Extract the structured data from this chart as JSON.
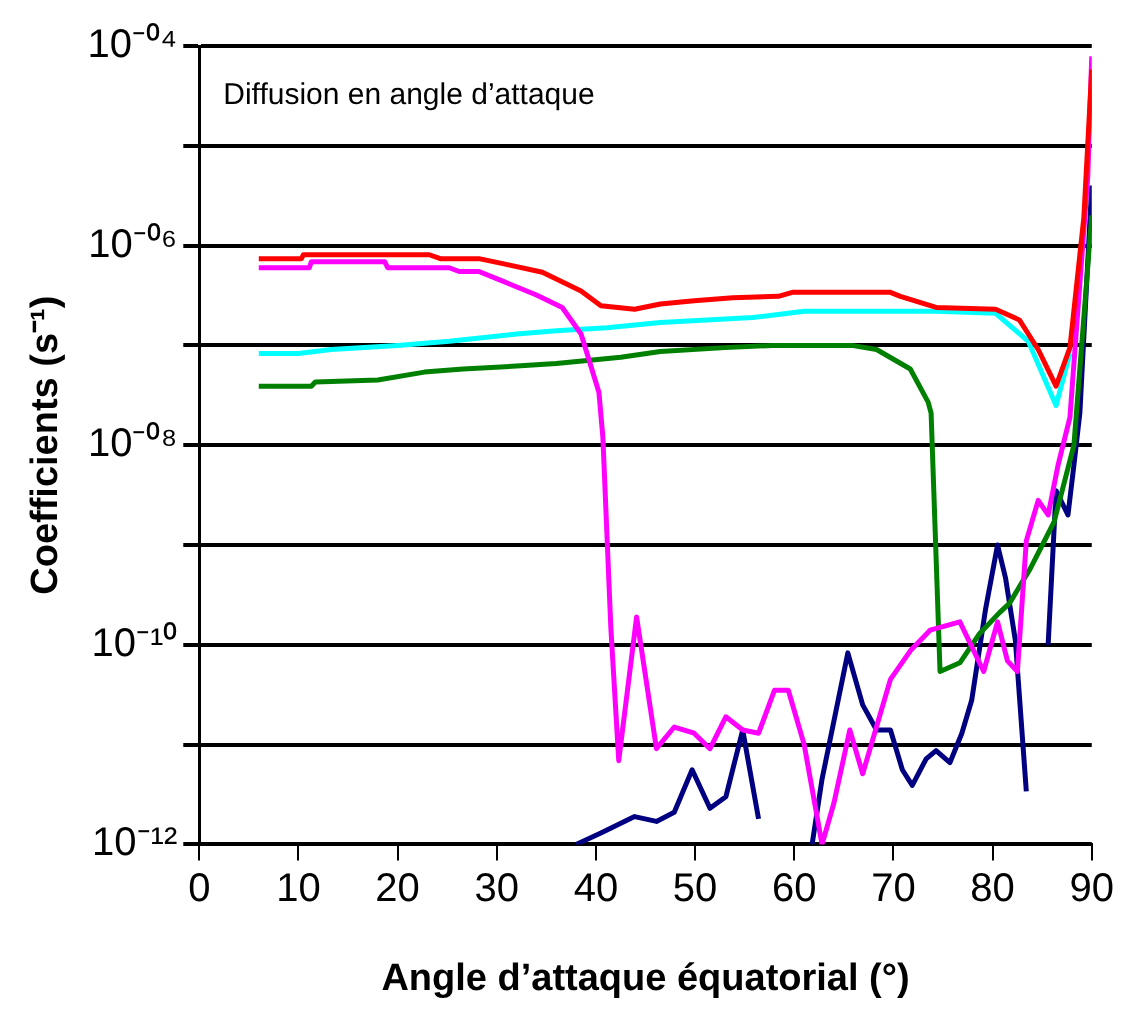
{
  "chart_data": {
    "type": "line",
    "xlabel": "Angle d’attaque équatorial (°)",
    "ylabel": "Coefficients (s⁻¹)",
    "annotations": [
      "Diffusion en angle d’attaque"
    ],
    "xlim": [
      0,
      90
    ],
    "xticks": [
      0,
      10,
      20,
      30,
      40,
      50,
      60,
      70,
      80,
      90
    ],
    "ylim": [
      1e-12,
      0.0001
    ],
    "yticks": [
      {
        "value": 1e-12,
        "label": "10⁻¹²"
      },
      {
        "value": 1e-11,
        "label": null
      },
      {
        "value": 1e-10,
        "label": "10⁻¹⁰"
      },
      {
        "value": 1e-09,
        "label": null
      },
      {
        "value": 1e-08,
        "label": "10⁻⁰⁸"
      },
      {
        "value": 1e-07,
        "label": null
      },
      {
        "value": 1e-06,
        "label": "10⁻⁰⁶"
      },
      {
        "value": 1e-05,
        "label": null
      },
      {
        "value": 0.0001,
        "label": "10⁻⁰⁴"
      }
    ],
    "log": "y",
    "grid": "y",
    "legend": false,
    "marker": "none",
    "line_style": "solid",
    "series": [
      {
        "color": "#ff0000",
        "x": [
          6,
          10.3,
          10.5,
          23.2,
          24.3,
          28.2,
          30.6,
          34.6,
          38.5,
          40.5,
          43.9,
          46.5,
          49.9,
          53.8,
          58.4,
          59.8,
          69.7,
          70.7,
          74.3,
          80.3,
          82.7,
          84.6,
          86.4,
          87.8,
          89.2,
          90
        ],
        "values": [
          7.4e-07,
          7.4e-07,
          8.1e-07,
          8.1e-07,
          7.4e-07,
          7.4e-07,
          6.6e-07,
          5.4e-07,
          3.5e-07,
          2.5e-07,
          2.3e-07,
          2.6e-07,
          2.8e-07,
          3e-07,
          3.1e-07,
          3.4e-07,
          3.4e-07,
          3.1e-07,
          2.4e-07,
          2.3e-07,
          1.8e-07,
          9.1e-08,
          3.9e-08,
          9.5e-08,
          1.9e-06,
          5.8e-05
        ]
      },
      {
        "color": "#ff00ff",
        "x": [
          6,
          11.1,
          11.3,
          18.7,
          19,
          25.2,
          26.2,
          28.2,
          30.6,
          34,
          36.6,
          38.5,
          40.3,
          40.7,
          41.5,
          42.3,
          44.1,
          46.1,
          47.9,
          49.9,
          51.5,
          53.1,
          54.8,
          56.4,
          58,
          59.4,
          61,
          62.8,
          64,
          65.6,
          66.9,
          69.7,
          71.7,
          73.7,
          76.7,
          79.1,
          80.5,
          81.5,
          82.5,
          83.4,
          84.6,
          85.6,
          86.6,
          87.8,
          89.6,
          90
        ],
        "values": [
          6e-07,
          6e-07,
          6.9e-07,
          6.9e-07,
          6e-07,
          6e-07,
          5.5e-07,
          5.5e-07,
          4.4e-07,
          3.2e-07,
          2.4e-07,
          1.3e-07,
          3.4e-08,
          1.2e-08,
          1.5e-10,
          6.9e-12,
          1.9e-10,
          9.1e-12,
          1.5e-11,
          1.3e-11,
          9.1e-12,
          1.9e-11,
          1.4e-11,
          1.3e-11,
          3.5e-11,
          3.5e-11,
          1e-11,
          1e-12,
          2.6e-12,
          1.4e-11,
          5.1e-12,
          4.5e-11,
          8.7e-11,
          1.4e-10,
          1.7e-10,
          5.4e-11,
          1.7e-10,
          6.9e-11,
          5.4e-11,
          1.1e-09,
          2.8e-09,
          2e-09,
          6.3e-09,
          1.9e-08,
          4.9e-06,
          7.9e-05
        ]
      },
      {
        "color": "#00ffff",
        "x": [
          6,
          10,
          13.3,
          20,
          25.2,
          32,
          36,
          41.1,
          46.5,
          55.8,
          61,
          74.3,
          80.3,
          83.6,
          86.4,
          87.8
        ],
        "values": [
          8.3e-08,
          8.3e-08,
          9.1e-08,
          1e-07,
          1.1e-07,
          1.3e-07,
          1.4e-07,
          1.5e-07,
          1.7e-07,
          1.9e-07,
          2.2e-07,
          2.2e-07,
          2.1e-07,
          1.1e-07,
          2.5e-08,
          8.3e-08
        ]
      },
      {
        "color": "#008000",
        "x": [
          6,
          11.3,
          11.7,
          18,
          22.7,
          26.6,
          32,
          36,
          42.5,
          46.5,
          53,
          57.8,
          65.8,
          68.3,
          71.7,
          73.5,
          73.8,
          74.7,
          76.7,
          78.7,
          80.7,
          81.7,
          83.8,
          86.2,
          88.2,
          90
        ],
        "values": [
          3.9e-08,
          3.9e-08,
          4.3e-08,
          4.5e-08,
          5.4e-08,
          5.8e-08,
          6.2e-08,
          6.6e-08,
          7.6e-08,
          8.7e-08,
          9.5e-08,
          1e-07,
          1e-07,
          9.1e-08,
          5.8e-08,
          2.7e-08,
          2.1e-08,
          5.4e-11,
          6.6e-11,
          1.3e-10,
          2.1e-10,
          2.6e-10,
          5.8e-10,
          1.7e-09,
          1e-08,
          2e-06
        ]
      },
      {
        "color": "#000080",
        "x": [
          38,
          40.5,
          43.9,
          46.1,
          47.9,
          49.7,
          51.5,
          53.1,
          54.8,
          56.4,
          59,
          61.8,
          62.8,
          65.4,
          66.9,
          68.3,
          69.7,
          70.9,
          71.9,
          73.3,
          74.3,
          75.7,
          76.9,
          77.9,
          79.3,
          80.5,
          81.3,
          82.3,
          83.4,
          84.5,
          85.6,
          86.4,
          87.6,
          88.2,
          88.8,
          90
        ],
        "values": [
          1e-12,
          1.3e-12,
          1.9e-12,
          1.7e-12,
          2.1e-12,
          5.6e-12,
          2.3e-12,
          3e-12,
          1.4e-11,
          1.8e-12,
          null,
          1e-12,
          4.5e-12,
          8.3e-11,
          2.5e-11,
          1.4e-11,
          1.4e-11,
          5.6e-12,
          3.9e-12,
          7.2e-12,
          8.7e-12,
          6.6e-12,
          1.3e-11,
          2.8e-11,
          2.3e-10,
          1e-09,
          4.7e-10,
          1.1e-10,
          3.4e-12,
          null,
          1e-10,
          3.5e-09,
          2e-09,
          6.3e-09,
          2.1e-08,
          4e-06
        ]
      }
    ]
  }
}
